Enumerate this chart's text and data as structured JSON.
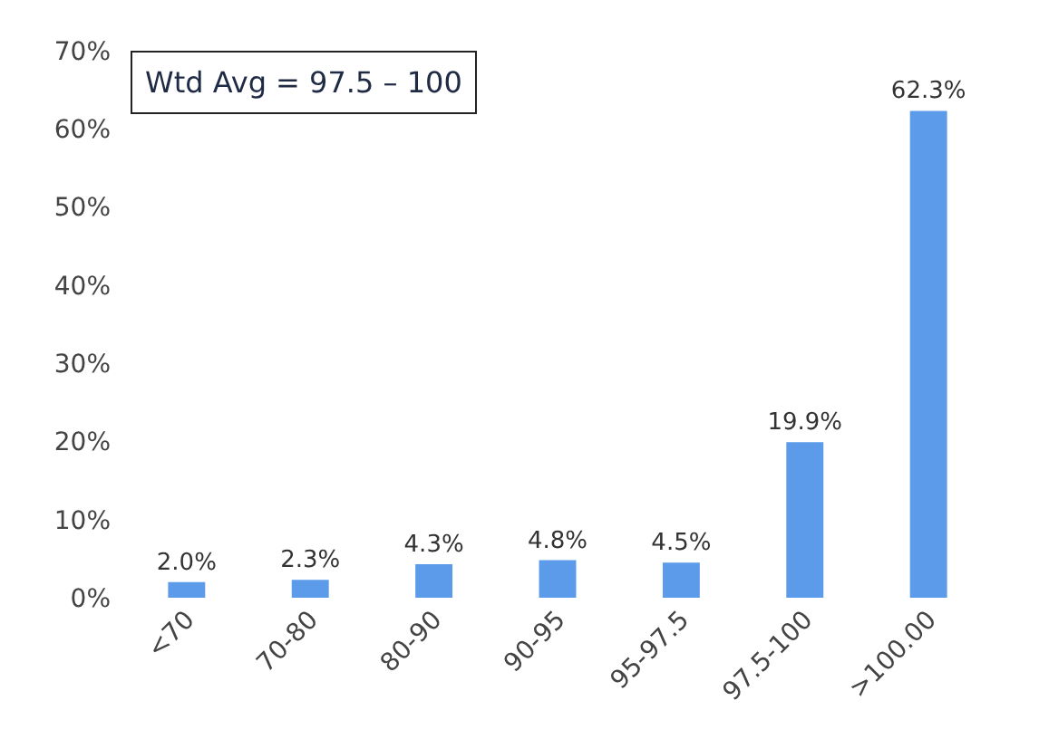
{
  "chart_data": {
    "type": "bar",
    "categories": [
      "<70",
      "70-80",
      "80-90",
      "90-95",
      "95-97.5",
      "97.5-100",
      ">100.00"
    ],
    "values": [
      2.0,
      2.3,
      4.3,
      4.8,
      4.5,
      19.9,
      62.3
    ],
    "value_labels": [
      "2.0%",
      "2.3%",
      "4.3%",
      "4.8%",
      "4.5%",
      "19.9%",
      "62.3%"
    ],
    "color": "#5b9bea",
    "ylim": [
      0,
      70
    ],
    "yticks": [
      {
        "value": 0,
        "label": "0%"
      },
      {
        "value": 10,
        "label": "10%"
      },
      {
        "value": 20,
        "label": "20%"
      },
      {
        "value": 30,
        "label": "30%"
      },
      {
        "value": 40,
        "label": "40%"
      },
      {
        "value": 50,
        "label": "50%"
      },
      {
        "value": 60,
        "label": "60%"
      },
      {
        "value": 70,
        "label": "70%"
      }
    ],
    "annotations": [
      "Wtd Avg = 97.5 – 100"
    ]
  }
}
